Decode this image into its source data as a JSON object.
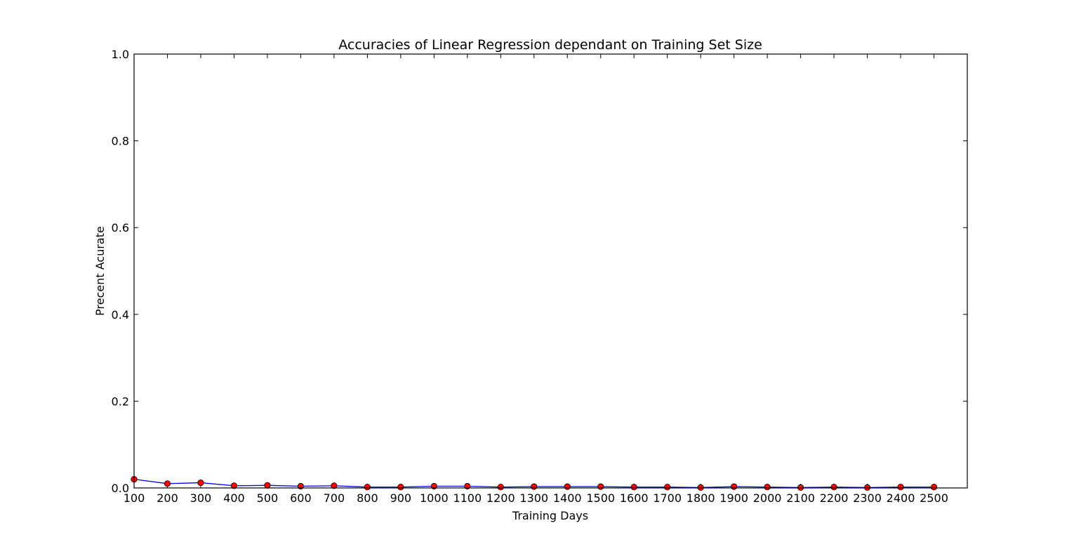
{
  "chart_data": {
    "type": "line",
    "title": "Accuracies of Linear Regression dependant on Training Set Size",
    "xlabel": "Training Days",
    "ylabel": "Precent Acurate",
    "xlim": [
      100,
      2600
    ],
    "ylim": [
      0.0,
      1.0
    ],
    "grid": false,
    "x_ticks": [
      100,
      200,
      300,
      400,
      500,
      600,
      700,
      800,
      900,
      1000,
      1100,
      1200,
      1300,
      1400,
      1500,
      1600,
      1700,
      1800,
      1900,
      2000,
      2100,
      2200,
      2300,
      2400,
      2500
    ],
    "x_tick_labels": [
      "100",
      "200",
      "300",
      "400",
      "500",
      "600",
      "700",
      "800",
      "900",
      "1000",
      "1100",
      "1200",
      "1300",
      "1400",
      "1500",
      "1600",
      "1700",
      "1800",
      "1900",
      "2000",
      "2100",
      "2200",
      "2300",
      "2400",
      "2500"
    ],
    "y_ticks": [
      0.0,
      0.2,
      0.4,
      0.6,
      0.8,
      1.0
    ],
    "y_tick_labels": [
      "0.0",
      "0.2",
      "0.4",
      "0.6",
      "0.8",
      "1.0"
    ],
    "series": [
      {
        "line_color": "#0000ff",
        "marker_color": "#ff0000",
        "x": [
          100,
          200,
          300,
          400,
          500,
          600,
          700,
          800,
          900,
          1000,
          1100,
          1200,
          1300,
          1400,
          1500,
          1600,
          1700,
          1800,
          1900,
          2000,
          2100,
          2200,
          2300,
          2400,
          2500
        ],
        "values": [
          0.02,
          0.01,
          0.012,
          0.005,
          0.006,
          0.004,
          0.005,
          0.002,
          0.002,
          0.004,
          0.004,
          0.002,
          0.003,
          0.003,
          0.003,
          0.002,
          0.002,
          0.001,
          0.003,
          0.002,
          0.001,
          0.002,
          0.001,
          0.002,
          0.002
        ]
      }
    ]
  }
}
